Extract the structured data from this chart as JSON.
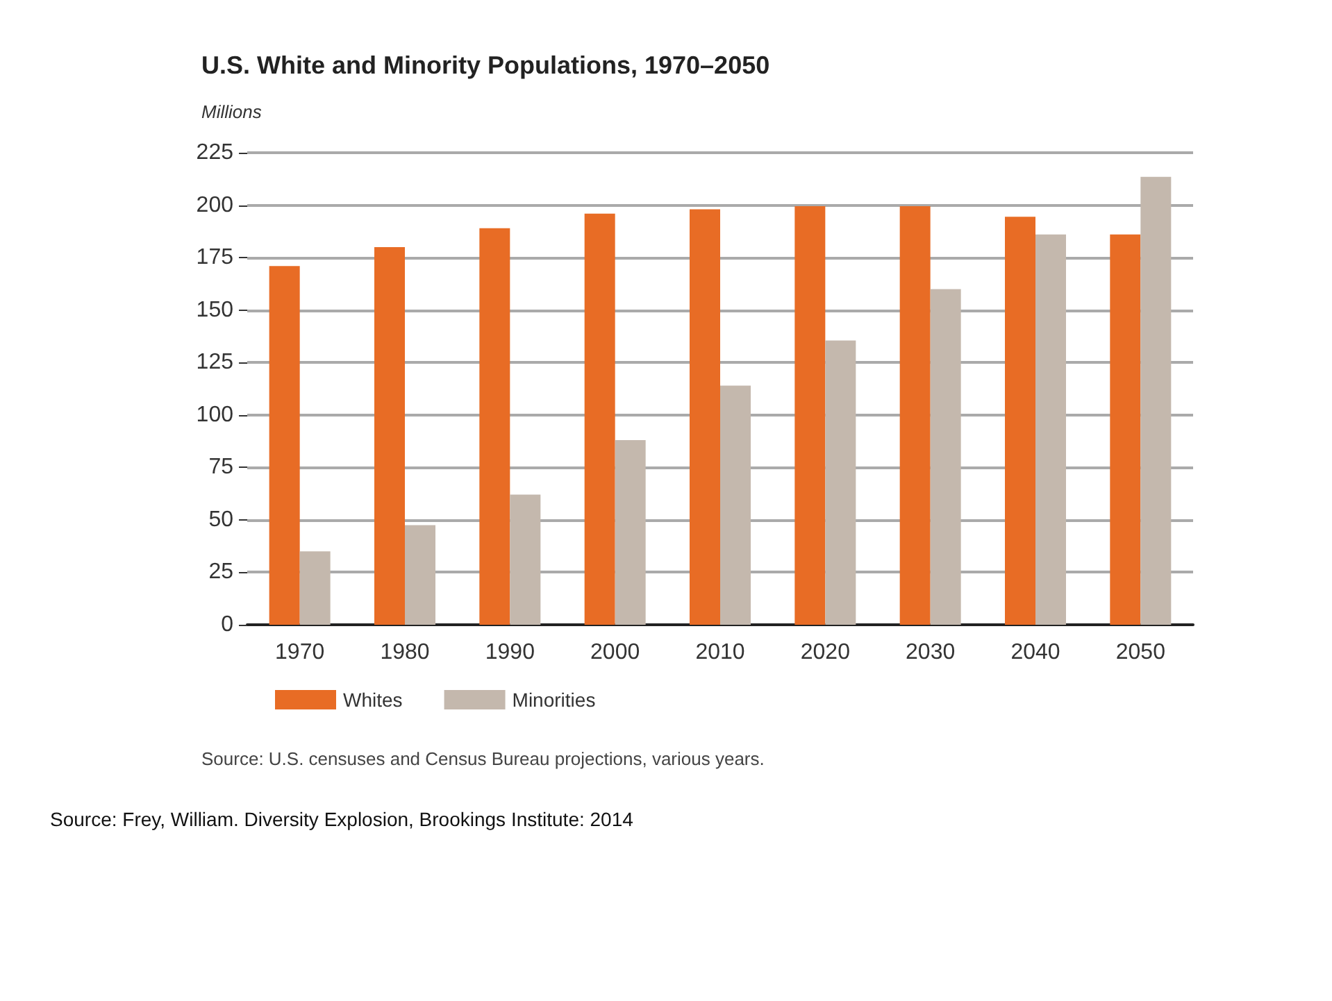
{
  "chart_data": {
    "type": "bar",
    "title": "U.S. White and Minority Populations, 1970–2050",
    "ylabel": "Millions",
    "categories": [
      "1970",
      "1980",
      "1990",
      "2000",
      "2010",
      "2020",
      "2030",
      "2040",
      "2050"
    ],
    "series": [
      {
        "name": "Whites",
        "color": "#e86c25",
        "values": [
          171,
          180,
          189,
          196,
          198,
          199.5,
          199.5,
          194.5,
          186
        ]
      },
      {
        "name": "Minorities",
        "color": "#c4b8ad",
        "values": [
          35,
          47.5,
          62,
          88,
          114,
          135.5,
          160,
          186,
          213.5
        ]
      }
    ],
    "ylim": [
      0,
      225
    ],
    "yticks": [
      0,
      25,
      50,
      75,
      100,
      125,
      150,
      175,
      200,
      225
    ],
    "grid": "y",
    "legend": "bottom left",
    "annotations": [
      "Source: U.S. censuses and Census Bureau projections, various years.",
      "Source: Frey, William. Diversity Explosion, Brookings Institute: 2014"
    ]
  }
}
